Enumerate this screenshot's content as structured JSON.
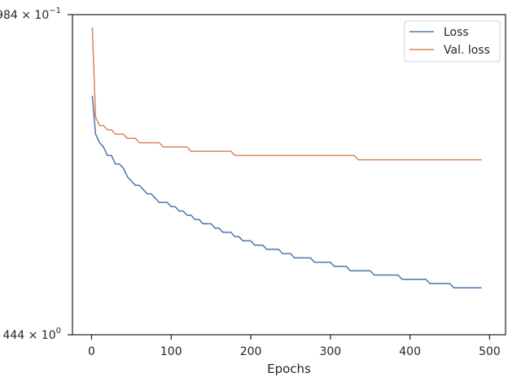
{
  "chart_data": {
    "type": "line",
    "title": "",
    "xlabel": "Epochs",
    "ylabel": "",
    "xlim": [
      -24,
      520
    ],
    "ylim": [
      0.25,
      1.0
    ],
    "xticks": [
      0,
      100,
      200,
      300,
      400,
      500
    ],
    "xtick_labels": [
      "0",
      "100",
      "200",
      "300",
      "400",
      "500"
    ],
    "ytick_labels": [
      {
        "y": 1.0,
        "base": "984",
        "exp": "−1"
      },
      {
        "y": 0.25,
        "base": "444",
        "exp": "0"
      }
    ],
    "grid": false,
    "legend_position": "top-right",
    "series": [
      {
        "name": "Loss",
        "color": "#4c72b0",
        "x": [
          1,
          5,
          10,
          15,
          20,
          25,
          30,
          35,
          40,
          45,
          50,
          55,
          60,
          65,
          70,
          75,
          80,
          85,
          90,
          95,
          100,
          105,
          110,
          115,
          120,
          125,
          130,
          135,
          140,
          145,
          150,
          155,
          160,
          165,
          170,
          175,
          180,
          185,
          190,
          195,
          200,
          205,
          210,
          215,
          220,
          225,
          230,
          235,
          240,
          245,
          250,
          255,
          260,
          265,
          270,
          275,
          280,
          285,
          290,
          295,
          300,
          305,
          310,
          315,
          320,
          325,
          330,
          335,
          340,
          345,
          350,
          355,
          360,
          365,
          370,
          375,
          380,
          385,
          390,
          395,
          400,
          405,
          410,
          415,
          420,
          425,
          430,
          435,
          440,
          445,
          450,
          455,
          460,
          465,
          470,
          475,
          480,
          485,
          490
        ],
        "y": [
          0.81,
          0.72,
          0.7,
          0.69,
          0.67,
          0.67,
          0.65,
          0.65,
          0.64,
          0.62,
          0.61,
          0.6,
          0.6,
          0.59,
          0.58,
          0.58,
          0.57,
          0.56,
          0.56,
          0.56,
          0.55,
          0.55,
          0.54,
          0.54,
          0.53,
          0.53,
          0.52,
          0.52,
          0.51,
          0.51,
          0.51,
          0.5,
          0.5,
          0.49,
          0.49,
          0.49,
          0.48,
          0.48,
          0.47,
          0.47,
          0.47,
          0.46,
          0.46,
          0.46,
          0.45,
          0.45,
          0.45,
          0.45,
          0.44,
          0.44,
          0.44,
          0.43,
          0.43,
          0.43,
          0.43,
          0.43,
          0.42,
          0.42,
          0.42,
          0.42,
          0.42,
          0.41,
          0.41,
          0.41,
          0.41,
          0.4,
          0.4,
          0.4,
          0.4,
          0.4,
          0.4,
          0.39,
          0.39,
          0.39,
          0.39,
          0.39,
          0.39,
          0.39,
          0.38,
          0.38,
          0.38,
          0.38,
          0.38,
          0.38,
          0.38,
          0.37,
          0.37,
          0.37,
          0.37,
          0.37,
          0.37,
          0.36,
          0.36,
          0.36,
          0.36,
          0.36,
          0.36,
          0.36,
          0.36
        ]
      },
      {
        "name": "Val. loss",
        "color": "#dd8452",
        "x": [
          1,
          5,
          10,
          15,
          20,
          25,
          30,
          35,
          40,
          45,
          50,
          55,
          60,
          65,
          70,
          75,
          80,
          85,
          90,
          95,
          100,
          105,
          110,
          115,
          120,
          125,
          130,
          135,
          140,
          145,
          150,
          155,
          160,
          165,
          170,
          175,
          180,
          185,
          190,
          195,
          200,
          205,
          210,
          215,
          220,
          225,
          230,
          235,
          240,
          245,
          250,
          255,
          260,
          265,
          270,
          275,
          280,
          285,
          290,
          295,
          300,
          305,
          310,
          315,
          320,
          325,
          330,
          335,
          340,
          345,
          350,
          355,
          360,
          365,
          370,
          375,
          380,
          385,
          390,
          395,
          400,
          405,
          410,
          415,
          420,
          425,
          430,
          435,
          440,
          445,
          450,
          455,
          460,
          465,
          470,
          475,
          480,
          485,
          490
        ],
        "y": [
          0.97,
          0.76,
          0.74,
          0.74,
          0.73,
          0.73,
          0.72,
          0.72,
          0.72,
          0.71,
          0.71,
          0.71,
          0.7,
          0.7,
          0.7,
          0.7,
          0.7,
          0.7,
          0.69,
          0.69,
          0.69,
          0.69,
          0.69,
          0.69,
          0.69,
          0.68,
          0.68,
          0.68,
          0.68,
          0.68,
          0.68,
          0.68,
          0.68,
          0.68,
          0.68,
          0.68,
          0.67,
          0.67,
          0.67,
          0.67,
          0.67,
          0.67,
          0.67,
          0.67,
          0.67,
          0.67,
          0.67,
          0.67,
          0.67,
          0.67,
          0.67,
          0.67,
          0.67,
          0.67,
          0.67,
          0.67,
          0.67,
          0.67,
          0.67,
          0.67,
          0.67,
          0.67,
          0.67,
          0.67,
          0.67,
          0.67,
          0.67,
          0.66,
          0.66,
          0.66,
          0.66,
          0.66,
          0.66,
          0.66,
          0.66,
          0.66,
          0.66,
          0.66,
          0.66,
          0.66,
          0.66,
          0.66,
          0.66,
          0.66,
          0.66,
          0.66,
          0.66,
          0.66,
          0.66,
          0.66,
          0.66,
          0.66,
          0.66,
          0.66,
          0.66,
          0.66,
          0.66,
          0.66,
          0.66
        ]
      }
    ]
  }
}
